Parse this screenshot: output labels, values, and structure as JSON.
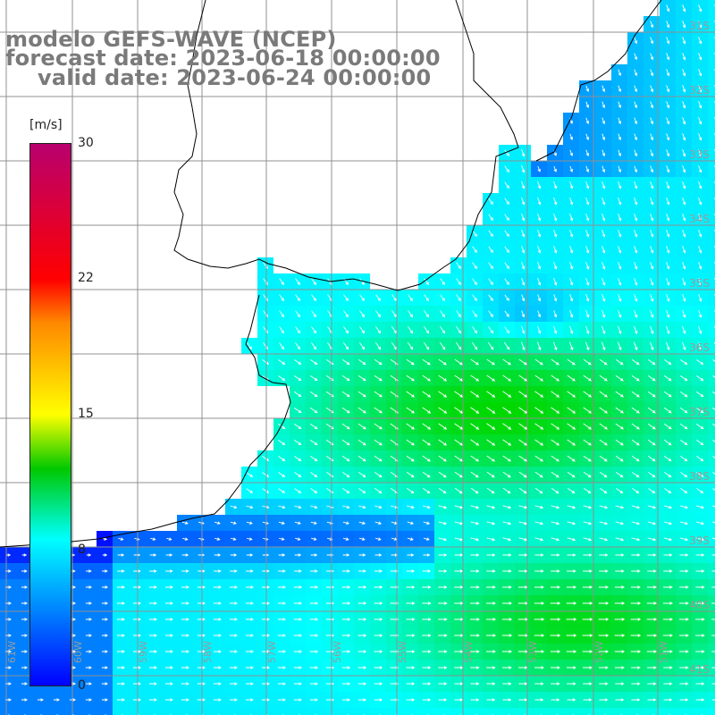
{
  "title": {
    "line1": "modelo GEFS-WAVE (NCEP)",
    "line2": "forecast date: 2023-06-18 00:00:00",
    "line3": "valid date: 2023-06-24 00:00:00"
  },
  "colorbar": {
    "unit": "[m/s]",
    "ticks": [
      "30",
      "22",
      "15",
      "8",
      "0"
    ],
    "colors": [
      "#0000ff",
      "#00ffff",
      "#00c800",
      "#ffff00",
      "#ff8800",
      "#ff0000",
      "#b8006e"
    ]
  },
  "axes": {
    "lat_labels": [
      "31S",
      "32S",
      "33S",
      "34S",
      "35S",
      "36S",
      "37S",
      "38S",
      "39S",
      "40S",
      "41S"
    ],
    "lon_labels": [
      "61W",
      "60W",
      "59W",
      "58W",
      "57W",
      "56W",
      "55W",
      "54W",
      "53W",
      "52W",
      "51W"
    ]
  },
  "colors": {
    "land": "#ffffff",
    "grid": "#909090",
    "coast": "#000000",
    "arrow": "#ffffff",
    "title": "#7a7a7a"
  }
}
